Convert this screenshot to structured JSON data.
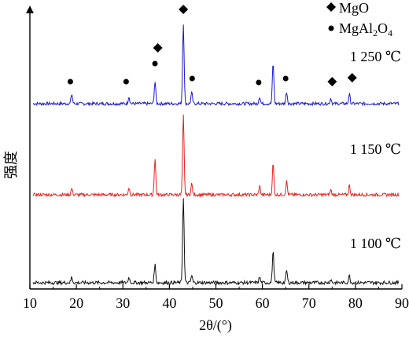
{
  "chart_data": {
    "type": "line",
    "title": "",
    "xlabel": "2θ/(°)",
    "ylabel": "强度",
    "xlim": [
      10,
      90
    ],
    "x_ticks": [
      "10",
      "20",
      "30",
      "40",
      "50",
      "60",
      "70",
      "80",
      "90"
    ],
    "y_ticks": [],
    "grid": false,
    "legend_position": "top-right",
    "legend": [
      {
        "symbol": "diamond",
        "label": "MgO",
        "label_main": "MgAl",
        "label_sub1": "2",
        "label_mid": "O",
        "label_sub2": "4"
      },
      {
        "symbol": "dot",
        "label": "MgAl₂O₄"
      }
    ],
    "series": [
      {
        "name": "1 250 ℃",
        "color": "#1a1acc",
        "noise": 2.0,
        "peaks": [
          {
            "x": 19.0,
            "h": 12
          },
          {
            "x": 31.3,
            "h": 9
          },
          {
            "x": 36.9,
            "h": 28
          },
          {
            "x": 43.0,
            "h": 103
          },
          {
            "x": 44.8,
            "h": 14
          },
          {
            "x": 59.4,
            "h": 9
          },
          {
            "x": 62.3,
            "h": 52
          },
          {
            "x": 65.2,
            "h": 15
          },
          {
            "x": 74.7,
            "h": 7
          },
          {
            "x": 78.7,
            "h": 12
          }
        ]
      },
      {
        "name": "1 150 ℃",
        "color": "#e8221c",
        "noise": 2.0,
        "peaks": [
          {
            "x": 19.0,
            "h": 8
          },
          {
            "x": 31.3,
            "h": 9
          },
          {
            "x": 36.9,
            "h": 46
          },
          {
            "x": 43.0,
            "h": 101
          },
          {
            "x": 44.8,
            "h": 14
          },
          {
            "x": 59.4,
            "h": 11
          },
          {
            "x": 62.3,
            "h": 40
          },
          {
            "x": 65.2,
            "h": 17
          },
          {
            "x": 74.7,
            "h": 6
          },
          {
            "x": 78.7,
            "h": 12
          }
        ]
      },
      {
        "name": "1 100 ℃",
        "color": "#111111",
        "noise": 2.2,
        "peaks": [
          {
            "x": 19.0,
            "h": 7
          },
          {
            "x": 31.3,
            "h": 7
          },
          {
            "x": 36.9,
            "h": 23
          },
          {
            "x": 43.0,
            "h": 110
          },
          {
            "x": 44.8,
            "h": 9
          },
          {
            "x": 59.4,
            "h": 7
          },
          {
            "x": 62.3,
            "h": 40
          },
          {
            "x": 65.2,
            "h": 16
          },
          {
            "x": 74.7,
            "h": 4
          },
          {
            "x": 78.7,
            "h": 9
          }
        ]
      }
    ],
    "phase_markers": [
      {
        "series": "1 250 ℃",
        "x": 18.7,
        "symbol": "dot"
      },
      {
        "series": "1 250 ℃",
        "x": 30.7,
        "symbol": "dot"
      },
      {
        "series": "1 250 ℃",
        "x": 36.9,
        "symbol": "dot"
      },
      {
        "series": "1 250 ℃",
        "x": 37.5,
        "symbol": "diamond"
      },
      {
        "series": "1 250 ℃",
        "x": 43.0,
        "symbol": "diamond"
      },
      {
        "series": "1 250 ℃",
        "x": 44.9,
        "symbol": "dot"
      },
      {
        "series": "1 250 ℃",
        "x": 59.2,
        "symbol": "dot"
      },
      {
        "series": "1 250 ℃",
        "x": 65.0,
        "symbol": "dot"
      },
      {
        "series": "1 250 ℃",
        "x": 75.0,
        "symbol": "diamond"
      },
      {
        "series": "1 250 ℃",
        "x": 79.3,
        "symbol": "diamond"
      }
    ]
  }
}
